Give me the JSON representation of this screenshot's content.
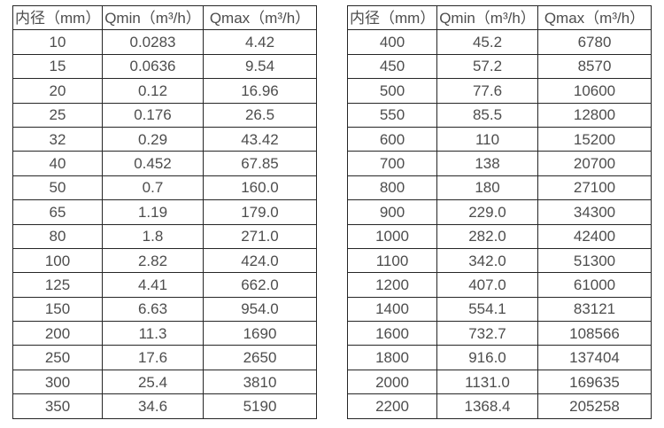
{
  "colors": {
    "border": "#262626",
    "text": "#4d4d4d",
    "background": "#ffffff"
  },
  "tables": [
    {
      "name": "small-diameter-flow-table",
      "headers": [
        "内径（mm）",
        "Qmin（m³/h）",
        "Qmax（m³/h）"
      ],
      "rows": [
        [
          "10",
          "0.0283",
          "4.42"
        ],
        [
          "15",
          "0.0636",
          "9.54"
        ],
        [
          "20",
          "0.12",
          "16.96"
        ],
        [
          "25",
          "0.176",
          "26.5"
        ],
        [
          "32",
          "0.29",
          "43.42"
        ],
        [
          "40",
          "0.452",
          "67.85"
        ],
        [
          "50",
          "0.7",
          "160.0"
        ],
        [
          "65",
          "1.19",
          "179.0"
        ],
        [
          "80",
          "1.8",
          "271.0"
        ],
        [
          "100",
          "2.82",
          "424.0"
        ],
        [
          "125",
          "4.41",
          "662.0"
        ],
        [
          "150",
          "6.63",
          "954.0"
        ],
        [
          "200",
          "11.3",
          "1690"
        ],
        [
          "250",
          "17.6",
          "2650"
        ],
        [
          "300",
          "25.4",
          "3810"
        ],
        [
          "350",
          "34.6",
          "5190"
        ]
      ]
    },
    {
      "name": "large-diameter-flow-table",
      "headers": [
        "内径（mm）",
        "Qmin（m³/h）",
        "Qmax（m³/h）"
      ],
      "rows": [
        [
          "400",
          "45.2",
          "6780"
        ],
        [
          "450",
          "57.2",
          "8570"
        ],
        [
          "500",
          "77.6",
          "10600"
        ],
        [
          "550",
          "85.5",
          "12800"
        ],
        [
          "600",
          "110",
          "15200"
        ],
        [
          "700",
          "138",
          "20700"
        ],
        [
          "800",
          "180",
          "27100"
        ],
        [
          "900",
          "229.0",
          "34300"
        ],
        [
          "1000",
          "282.0",
          "42400"
        ],
        [
          "1100",
          "342.0",
          "51300"
        ],
        [
          "1200",
          "407.0",
          "61000"
        ],
        [
          "1400",
          "554.1",
          "83121"
        ],
        [
          "1600",
          "732.7",
          "108566"
        ],
        [
          "1800",
          "916.0",
          "137404"
        ],
        [
          "2000",
          "1131.0",
          "169635"
        ],
        [
          "2200",
          "1368.4",
          "205258"
        ]
      ]
    }
  ]
}
